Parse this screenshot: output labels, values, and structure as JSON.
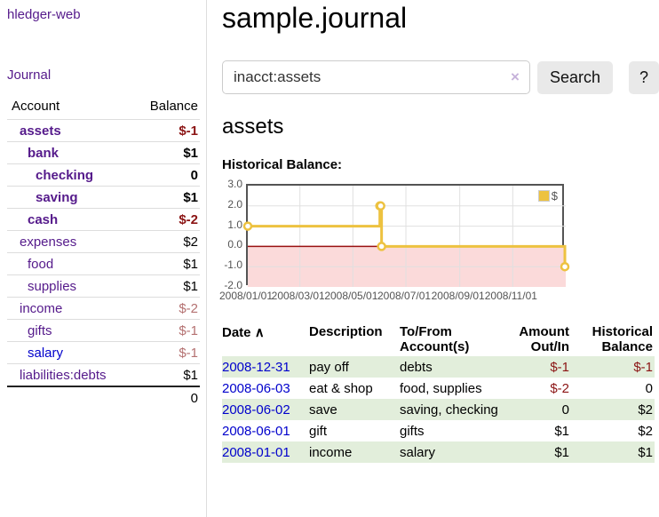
{
  "colors": {
    "link_purple": "#551a8b",
    "link_blue": "#0000cc",
    "negative_strong": "#8b1414",
    "negative_soft": "#b47171",
    "row_stripe_green": "#e2eedb",
    "series_gold": "#edc240"
  },
  "sidebar": {
    "app_title": "hledger-web",
    "journal_link": "Journal",
    "account_col": "Account",
    "balance_col": "Balance",
    "accounts": [
      {
        "name": "assets",
        "balance": "$-1",
        "level": 1,
        "bold": true,
        "neg": "strong"
      },
      {
        "name": "bank",
        "balance": "$1",
        "level": 2,
        "bold": true
      },
      {
        "name": "checking",
        "balance": "0",
        "level": 3,
        "bold": true
      },
      {
        "name": "saving",
        "balance": "$1",
        "level": 3,
        "bold": true
      },
      {
        "name": "cash",
        "balance": "$-2",
        "level": 2,
        "bold": true,
        "neg": "strong"
      },
      {
        "name": "expenses",
        "balance": "$2",
        "level": 1
      },
      {
        "name": "food",
        "balance": "$1",
        "level": 2
      },
      {
        "name": "supplies",
        "balance": "$1",
        "level": 2
      },
      {
        "name": "income",
        "balance": "$-2",
        "level": 1,
        "neg": "soft"
      },
      {
        "name": "gifts",
        "balance": "$-1",
        "level": 2,
        "neg": "soft"
      },
      {
        "name": "salary",
        "balance": "$-1",
        "level": 2,
        "neg": "soft",
        "link_color": "blue"
      },
      {
        "name": "liabilities:debts",
        "balance": "$1",
        "level": 1
      }
    ],
    "total": "0"
  },
  "header": {
    "title": "sample.journal"
  },
  "search": {
    "value": "inacct:assets",
    "clear_icon": "×",
    "search_button": "Search",
    "help_button": "?"
  },
  "account_view": {
    "heading": "assets",
    "chart_title": "Historical Balance:"
  },
  "chart_data": {
    "type": "line",
    "step": true,
    "title": "Historical Balance",
    "x_ticks": [
      "2008/01/01",
      "2008/03/01",
      "2008/05/01",
      "2008/07/01",
      "2008/09/01",
      "2008/11/01"
    ],
    "y_ticks": [
      "3.0",
      "2.0",
      "1.0",
      "0.0",
      "-1.0",
      "-2.0"
    ],
    "xlim": [
      "2008/01/01",
      "2009/01/01"
    ],
    "ylim": [
      -2,
      3
    ],
    "series": [
      {
        "name": "$",
        "color": "#edc240",
        "points": [
          [
            "2008-01-01",
            1
          ],
          [
            "2008-06-01",
            2
          ],
          [
            "2008-06-02",
            2
          ],
          [
            "2008-06-03",
            0
          ],
          [
            "2008-12-31",
            -1
          ]
        ]
      }
    ],
    "legend": {
      "label": "$",
      "position": "top-right"
    },
    "zero_line_color": "#991111",
    "negative_region_fill": "#fbdada",
    "grid_color": "#e0e0e0"
  },
  "register": {
    "columns": [
      "Date",
      "Description",
      "To/From Account(s)",
      "Amount Out/In",
      "Historical Balance"
    ],
    "sort_indicator": "∧",
    "rows": [
      {
        "date": "2008-12-31",
        "description": "pay off",
        "accounts": "debts",
        "amount": "$-1",
        "balance": "$-1",
        "amount_neg": true,
        "balance_neg": true
      },
      {
        "date": "2008-06-03",
        "description": "eat & shop",
        "accounts": "food, supplies",
        "amount": "$-2",
        "balance": "0",
        "amount_neg": true
      },
      {
        "date": "2008-06-02",
        "description": "save",
        "accounts": "saving, checking",
        "amount": "0",
        "balance": "$2"
      },
      {
        "date": "2008-06-01",
        "description": "gift",
        "accounts": "gifts",
        "amount": "$1",
        "balance": "$2"
      },
      {
        "date": "2008-01-01",
        "description": "income",
        "accounts": "salary",
        "amount": "$1",
        "balance": "$1"
      }
    ]
  }
}
